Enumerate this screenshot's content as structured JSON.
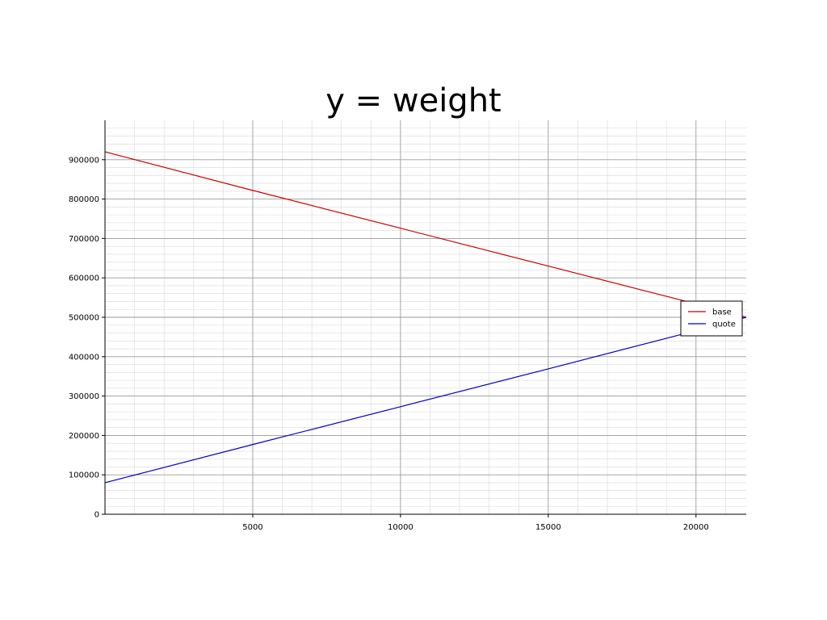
{
  "chart_data": {
    "type": "line",
    "title": "y = weight",
    "xlabel": "",
    "ylabel": "",
    "xlim": [
      0,
      21700
    ],
    "ylim": [
      0,
      1000000
    ],
    "x_ticks": [
      5000,
      10000,
      15000,
      20000
    ],
    "y_ticks": [
      0,
      100000,
      200000,
      300000,
      400000,
      500000,
      600000,
      700000,
      800000,
      900000
    ],
    "grid": true,
    "minor_grid": true,
    "legend_position": "right",
    "series": [
      {
        "name": "base",
        "color": "#cc0000",
        "x": [
          0,
          5000,
          10000,
          15000,
          20000,
          21700
        ],
        "y": [
          920000,
          822000,
          726000,
          630000,
          534000,
          500000
        ]
      },
      {
        "name": "quote",
        "color": "#0000cc",
        "x": [
          0,
          5000,
          10000,
          15000,
          20000,
          21700
        ],
        "y": [
          80000,
          177000,
          273000,
          369000,
          466000,
          500000
        ]
      }
    ]
  }
}
